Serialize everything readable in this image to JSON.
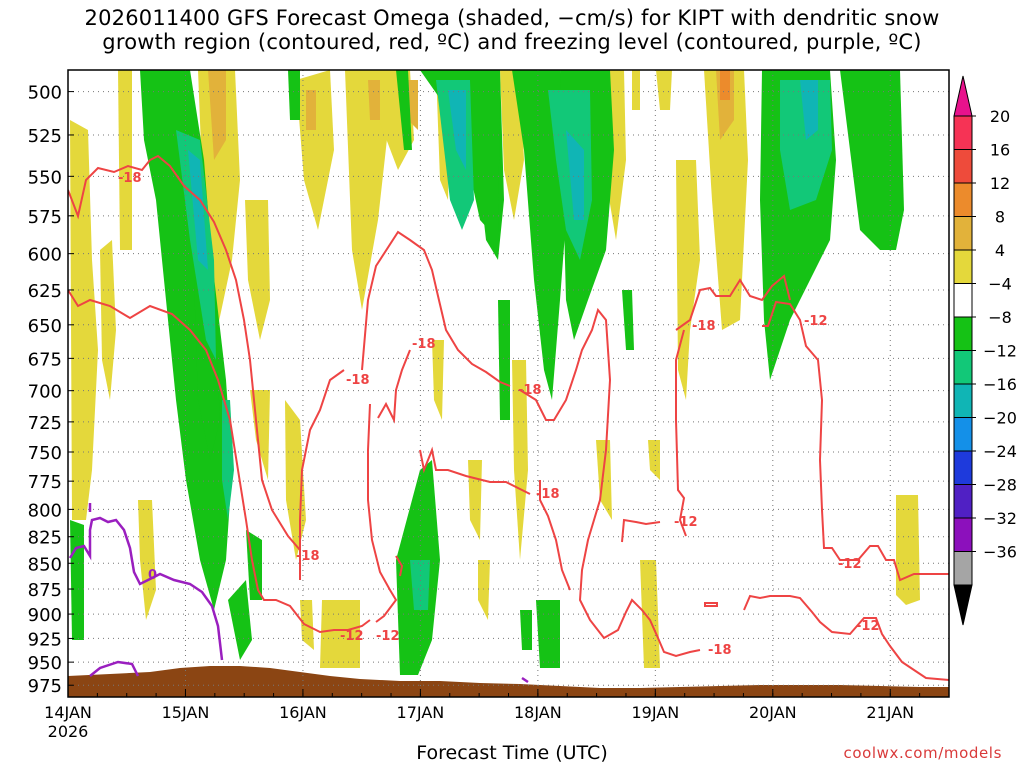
{
  "chart_data": {
    "type": "heatmap",
    "title": "2026011400 GFS Forecast Omega (shaded, −cm/s) for KIPT with dendritic snow growth region (contoured, red, ºC) and freezing level (contoured, purple, ºC)",
    "title_lines": [
      "2026011400 GFS Forecast Omega (shaded, −cm/s) for KIPT with dendritic snow",
      "growth region (contoured, red, ºC) and freezing level (contoured, purple, ºC)"
    ],
    "xlabel": "Forecast Time (UTC)",
    "ylabel": "",
    "credit": "coolwx.com/models",
    "x_ticks": [
      "14JAN",
      "15JAN",
      "16JAN",
      "17JAN",
      "18JAN",
      "19JAN",
      "20JAN",
      "21JAN"
    ],
    "x_year": "2026",
    "x_range_days": [
      0,
      7.5
    ],
    "y_ticks": [
      "500",
      "525",
      "550",
      "575",
      "600",
      "625",
      "650",
      "675",
      "700",
      "725",
      "750",
      "775",
      "800",
      "825",
      "850",
      "875",
      "900",
      "925",
      "950",
      "975"
    ],
    "y_range_hpa": [
      488,
      988
    ],
    "y_scale": "log-pressure (inverted)",
    "grid": true,
    "colorbar": {
      "labels": [
        "20",
        "16",
        "12",
        "8",
        "4",
        "−4",
        "−8",
        "−12",
        "−16",
        "−20",
        "−24",
        "−28",
        "−32",
        "−36"
      ],
      "colors": [
        "#f63355",
        "#ee4b3b",
        "#ec8b2c",
        "#e2b23a",
        "#e4d83b",
        "#ffffff",
        "#15c215",
        "#12c878",
        "#10b5b5",
        "#1490e8",
        "#1e3adc",
        "#5020c4",
        "#8c10bc",
        "#a5a5a5"
      ],
      "over_color": "#e8128c",
      "under_color": "#000000"
    },
    "dendritic_contour_labels": [
      "-18",
      "-18",
      "-12",
      "-18",
      "-12",
      "-18",
      "-18",
      "-18",
      "-18",
      "-12",
      "-12",
      "-12",
      "-12",
      "-18"
    ],
    "freezing_level_label": "0",
    "series": [
      {
        "name": "dendritic snow growth region",
        "color": "#ee4444"
      },
      {
        "name": "freezing level",
        "color": "#9a1fbf"
      },
      {
        "name": "terrain",
        "color": "#8b4513"
      }
    ]
  }
}
